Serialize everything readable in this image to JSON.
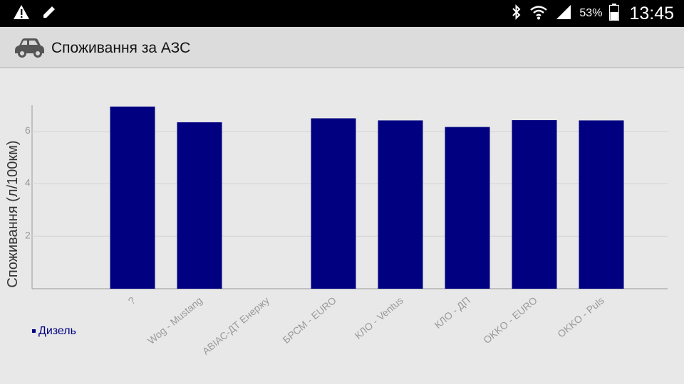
{
  "status_bar": {
    "battery_percent": "53%",
    "time": "13:45",
    "icons": [
      "warning-icon",
      "edit-icon",
      "bluetooth-icon",
      "wifi-icon",
      "signal-icon",
      "battery-icon"
    ]
  },
  "app_bar": {
    "icon": "car-icon",
    "title": "Споживання за АЗС"
  },
  "chart_data": {
    "type": "bar",
    "categories": [
      "?",
      "Wog - Mustang",
      "АВІАС-ДТ Енержу",
      "БРСМ - EURO",
      "КЛО - Ventus",
      "КЛО - ДП",
      "OKKO - EURO",
      "OKKO - Puls"
    ],
    "series": [
      {
        "name": "Дизель",
        "values": [
          6.95,
          6.35,
          null,
          6.5,
          6.42,
          6.17,
          6.43,
          6.42
        ],
        "color": "#000080"
      }
    ],
    "ylabel": "Споживання (л/100км)",
    "xlabel": "",
    "yticks": [
      2,
      4,
      6
    ],
    "ylim": [
      0,
      7
    ],
    "grid": true,
    "legend_position": "bottom-left",
    "legend_color": "#000080"
  }
}
